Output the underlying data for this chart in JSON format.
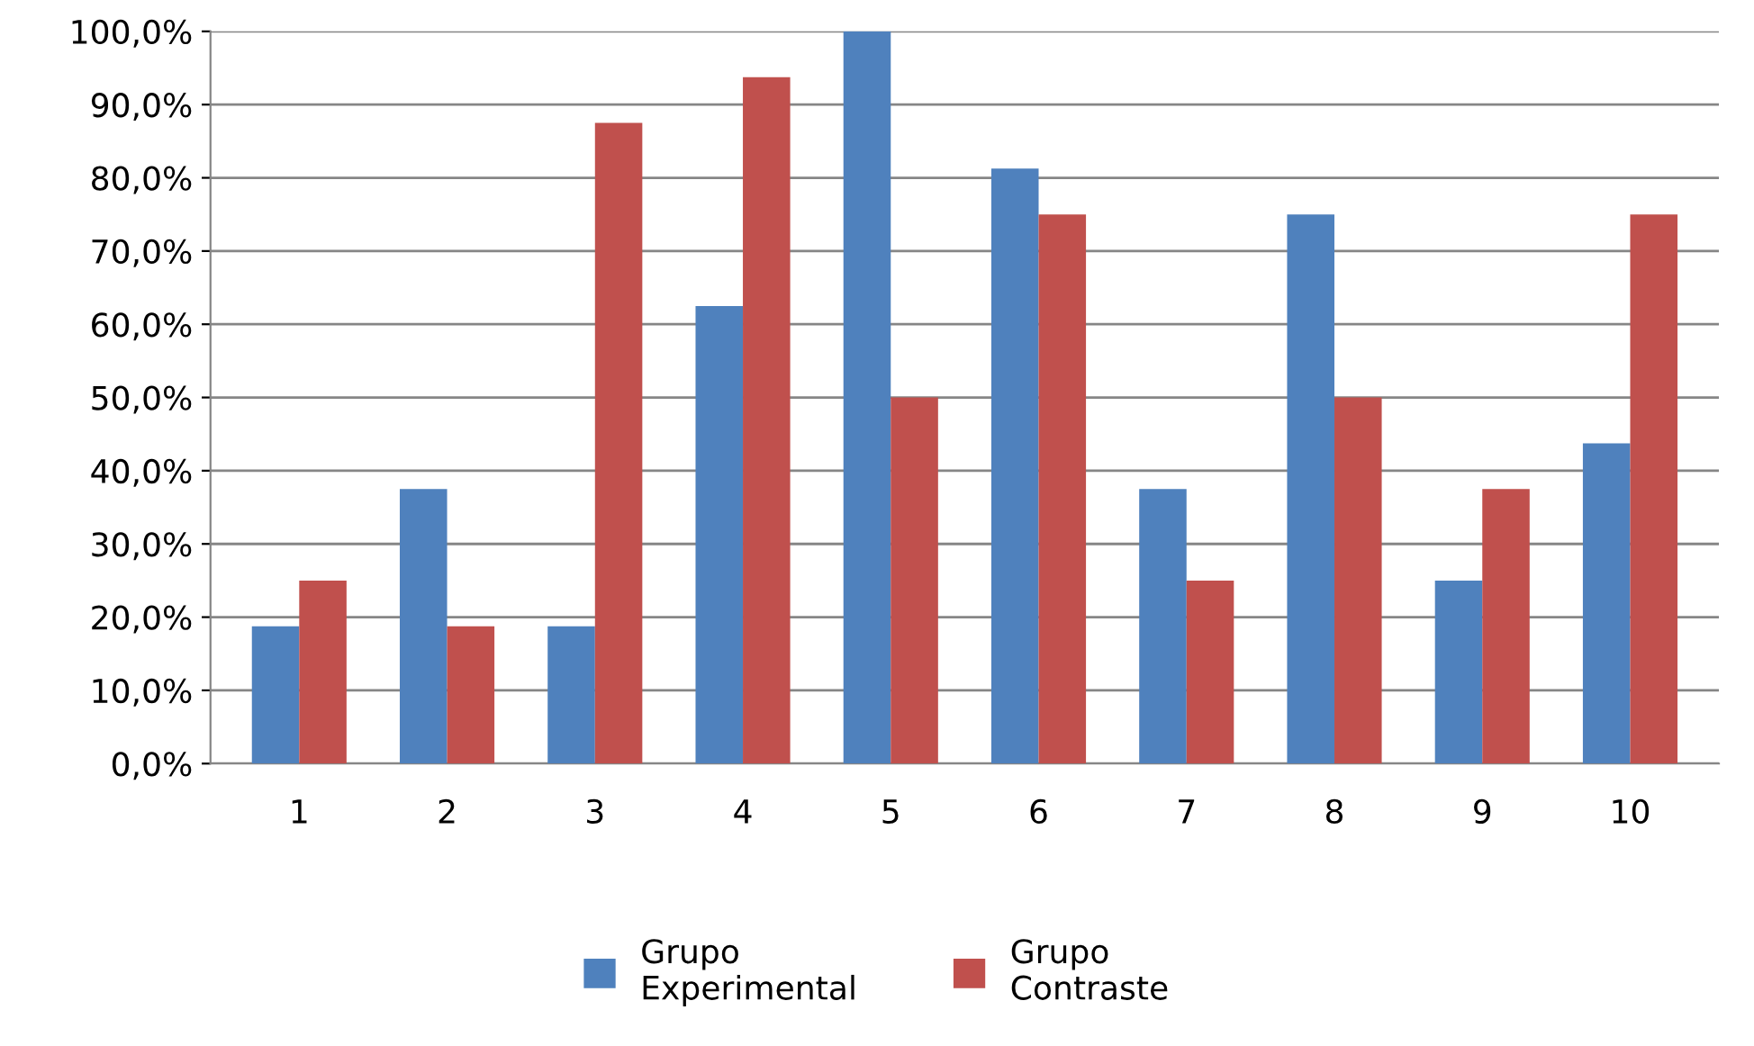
{
  "chart_data": {
    "type": "bar",
    "categories": [
      "1",
      "2",
      "3",
      "4",
      "5",
      "6",
      "7",
      "8",
      "9",
      "10"
    ],
    "series": [
      {
        "name": "Grupo Experimental",
        "color": "#4f81bd",
        "values": [
          18.75,
          37.5,
          18.75,
          62.5,
          100,
          81.25,
          37.5,
          75,
          25,
          43.75
        ]
      },
      {
        "name": "Grupo Contraste",
        "color": "#c0504d",
        "values": [
          25,
          18.75,
          87.5,
          93.75,
          50,
          75,
          25,
          50,
          37.5,
          75
        ]
      }
    ],
    "ylim": [
      0,
      100
    ],
    "yticks": [
      {
        "value": 0,
        "label": "0,0%"
      },
      {
        "value": 10,
        "label": "10,0%"
      },
      {
        "value": 20,
        "label": "20,0%"
      },
      {
        "value": 30,
        "label": "30,0%"
      },
      {
        "value": 40,
        "label": "40,0%"
      },
      {
        "value": 50,
        "label": "50,0%"
      },
      {
        "value": 60,
        "label": "60,0%"
      },
      {
        "value": 70,
        "label": "70,0%"
      },
      {
        "value": 80,
        "label": "80,0%"
      },
      {
        "value": 90,
        "label": "90,0%"
      },
      {
        "value": 100,
        "label": "100,0%"
      }
    ],
    "grid": "y",
    "legend": "bottom"
  }
}
